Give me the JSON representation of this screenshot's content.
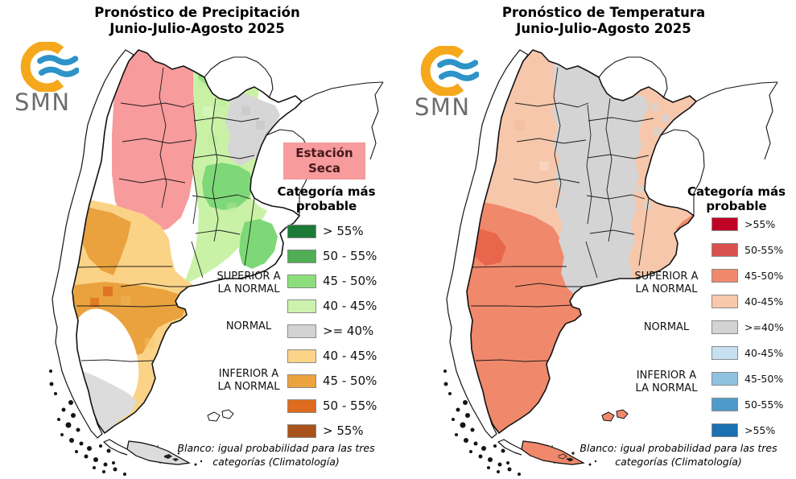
{
  "left_panel": {
    "title": "Pronóstico de Precipitación",
    "subtitle": "Junio-Julio-Agosto 2025",
    "badge": {
      "label": "Estación Seca",
      "bg": "#F79B9C"
    },
    "legend": {
      "heading": "Categoría más probable",
      "items": [
        {
          "label": "> 55%",
          "color": "#1B7A36"
        },
        {
          "label": "50 - 55%",
          "color": "#50AE54"
        },
        {
          "label": "45 - 50%",
          "color": "#8CDE7C"
        },
        {
          "label": "40 - 45%",
          "color": "#CCF2AD"
        },
        {
          "label": ">= 40%",
          "color": "#D3D3D3"
        },
        {
          "label": "40 - 45%",
          "color": "#FCD488"
        },
        {
          "label": "45 - 50%",
          "color": "#ECA33E"
        },
        {
          "label": "50 - 55%",
          "color": "#DE6B1E"
        },
        {
          "label": "> 55%",
          "color": "#A7531B"
        }
      ],
      "group_labels": [
        "SUPERIOR A LA NORMAL",
        "NORMAL",
        "INFERIOR A LA NORMAL"
      ]
    },
    "footnote": "Blanco: igual probabilidad para las tres categorías (Climatología)"
  },
  "right_panel": {
    "title": "Pronóstico de Temperatura",
    "subtitle": "Junio-Julio-Agosto 2025",
    "legend": {
      "heading": "Categoría más probable",
      "items": [
        {
          "label": ">55%",
          "color": "#C00225"
        },
        {
          "label": "50-55%",
          "color": "#D9504C"
        },
        {
          "label": "45-50%",
          "color": "#F0886B"
        },
        {
          "label": "40-45%",
          "color": "#F8C8AC"
        },
        {
          "label": ">=40%",
          "color": "#D3D3D3"
        },
        {
          "label": "40-45%",
          "color": "#C6E0F0"
        },
        {
          "label": "45-50%",
          "color": "#8FC2DF"
        },
        {
          "label": "50-55%",
          "color": "#4E9BCB"
        },
        {
          "label": ">55%",
          "color": "#1A70B0"
        }
      ],
      "group_labels": [
        "SUPERIOR A LA NORMAL",
        "NORMAL",
        "INFERIOR A LA NORMAL"
      ]
    },
    "footnote": "Blanco: igual probabilidad para las tres categorías (Climatología)"
  },
  "logo": {
    "text": "SMN",
    "orange": "#F5A81C",
    "blue": "#2D93C8",
    "text_color": "#6B6D6F"
  },
  "map_colors": {
    "precip": {
      "dry_pink": "#F79B9C",
      "light_green": "#C9F2A7",
      "mid_green": "#7ED877",
      "gray": "#D6D6D6",
      "light_orange": "#FBD387",
      "mid_orange": "#E9A23E",
      "deep_orange": "#DE6B1E",
      "south_gray": "#DCDCDC"
    },
    "temp": {
      "light_salmon": "#F7C7AB",
      "salmon": "#F0886B",
      "deep_salmon": "#E8664C",
      "gray": "#D4D4D4"
    },
    "outline": "#141414"
  }
}
